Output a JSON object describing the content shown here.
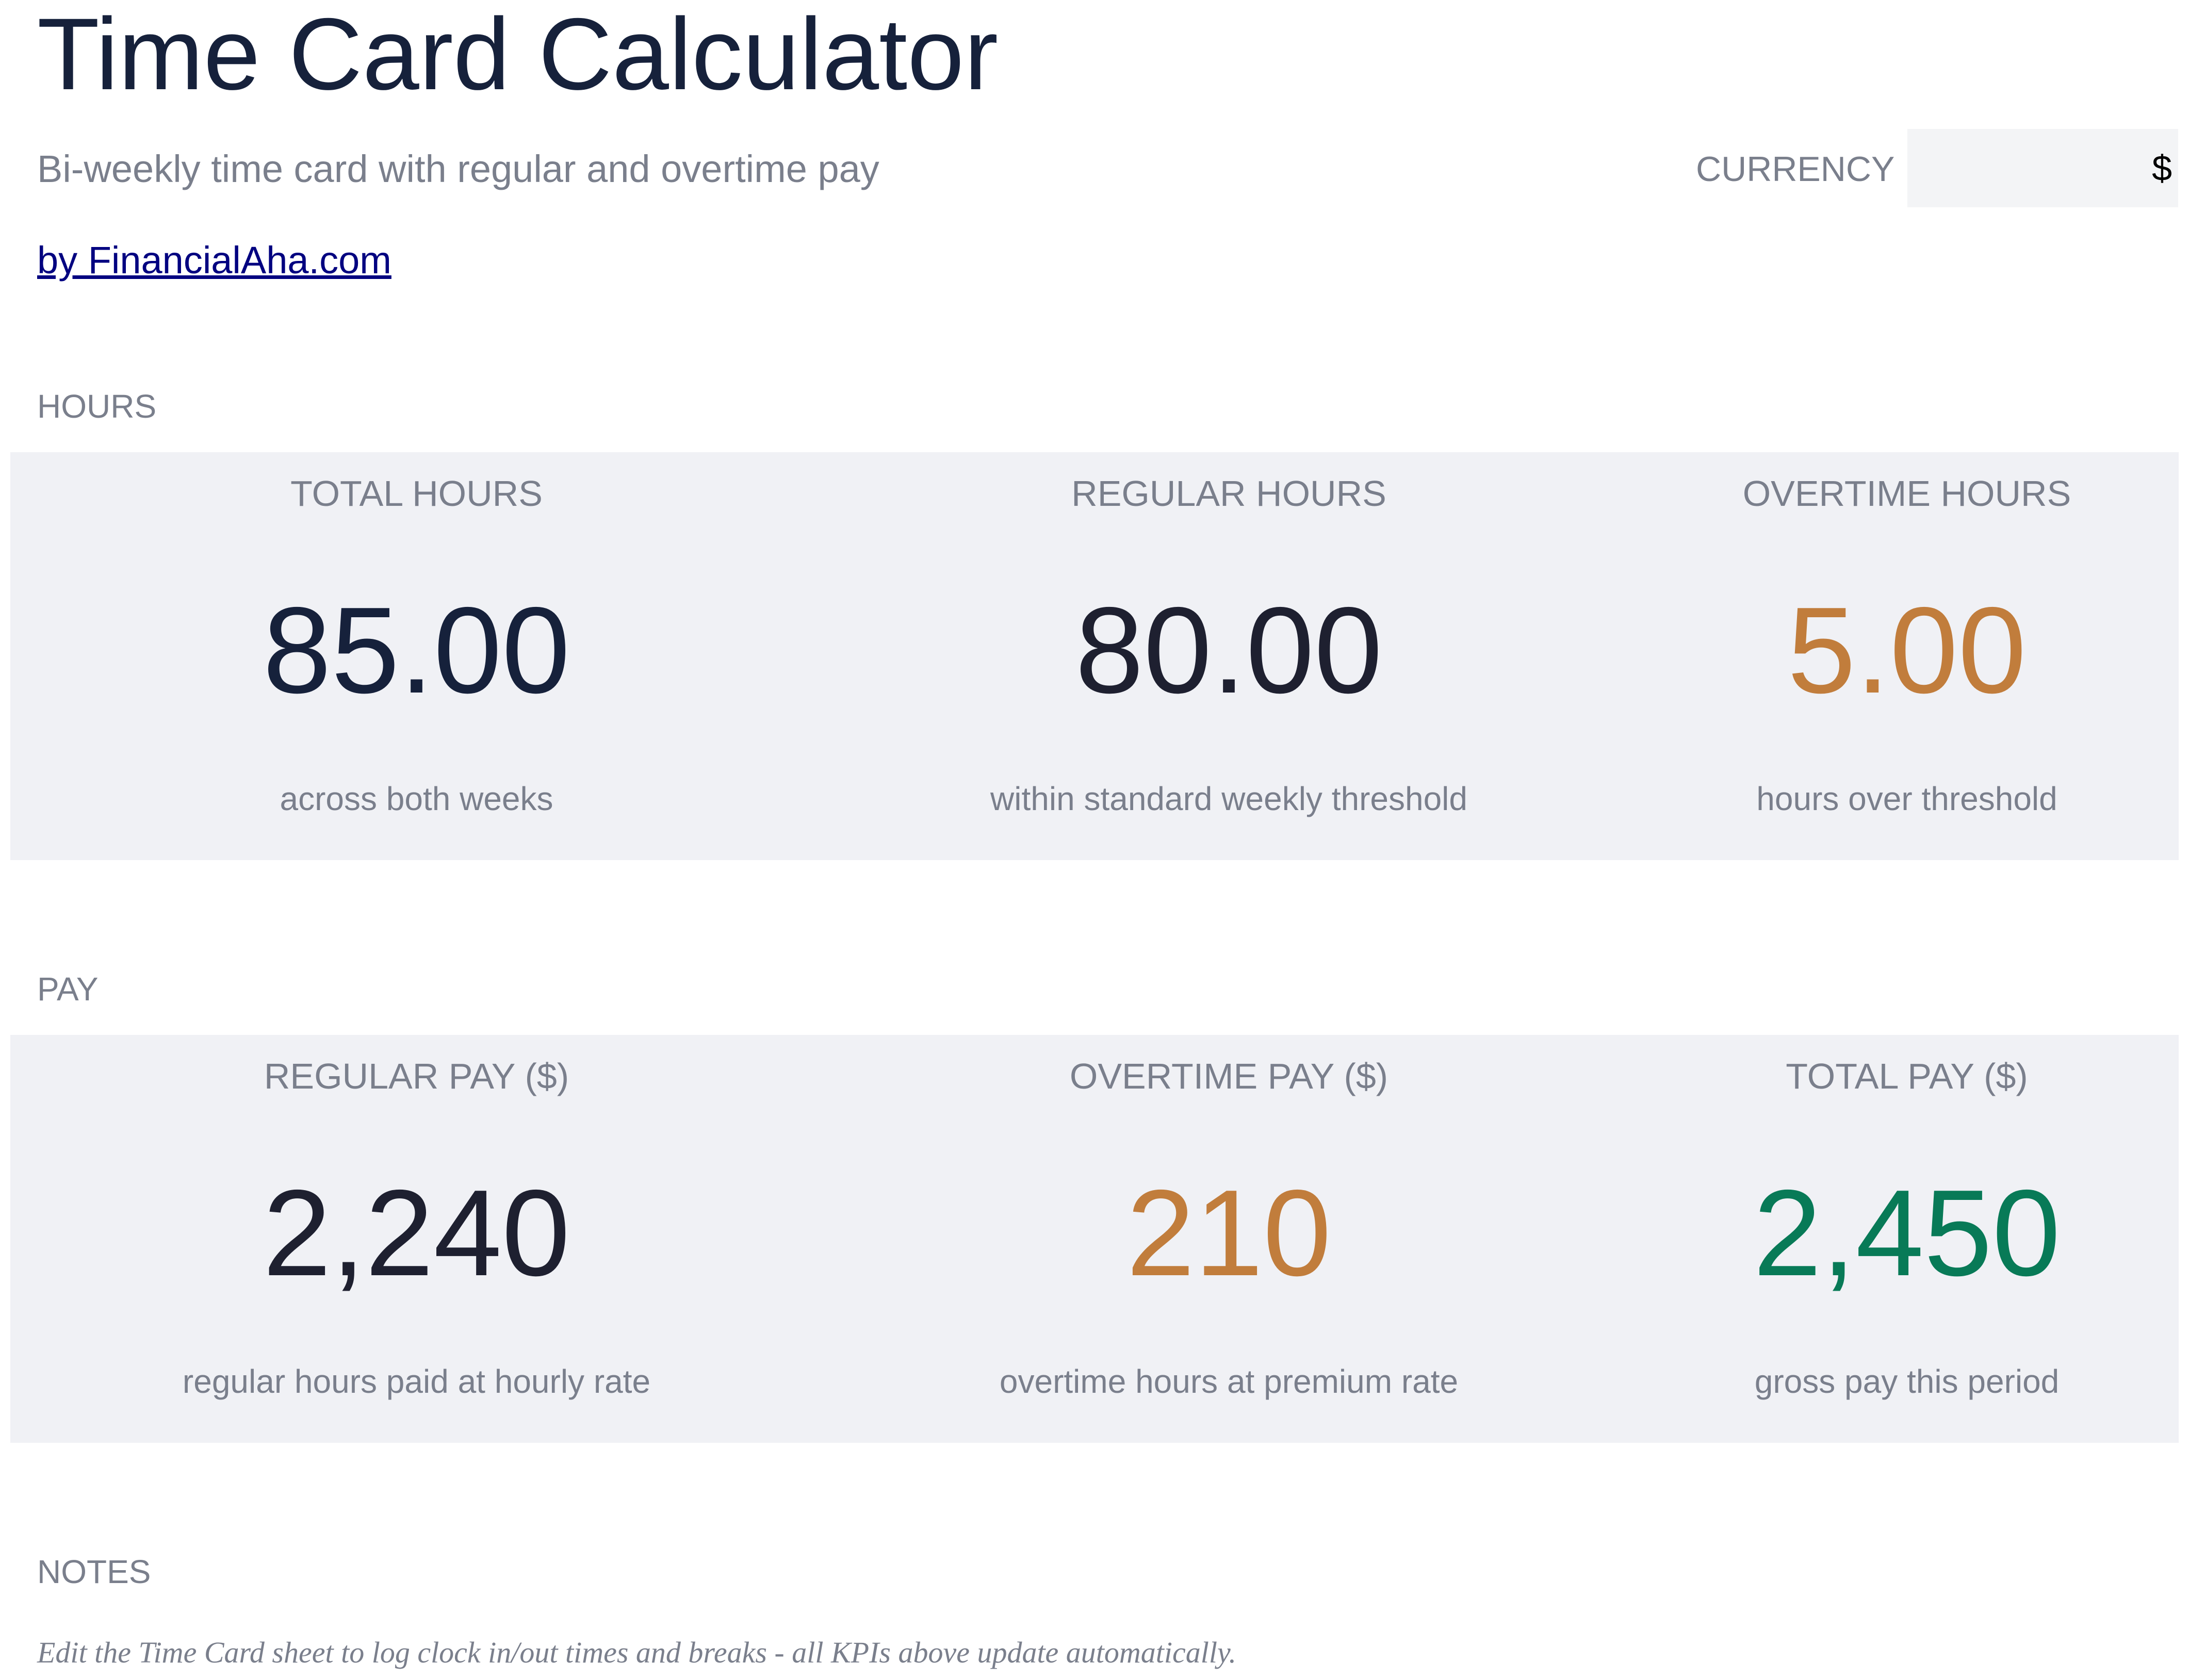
{
  "header": {
    "title": "Time Card Calculator",
    "subtitle": "Bi-weekly time card with regular and overtime pay",
    "byline": "by FinancialAha.com"
  },
  "currency": {
    "label": "CURRENCY",
    "value": "$"
  },
  "colors": {
    "navy": "#16213b",
    "dark": "#1e2030",
    "amber": "#c17d3c",
    "green": "#087a57",
    "muted": "#7a7f8c",
    "panel": "#f0f1f5"
  },
  "hours": {
    "section_label": "HOURS",
    "kpis": [
      {
        "label": "TOTAL HOURS",
        "value": "85.00",
        "sub": "across both weeks"
      },
      {
        "label": "REGULAR HOURS",
        "value": "80.00",
        "sub": "within standard weekly threshold"
      },
      {
        "label": "OVERTIME HOURS",
        "value": "5.00",
        "sub": "hours over threshold"
      }
    ]
  },
  "pay": {
    "section_label": "PAY",
    "kpis": [
      {
        "label": "REGULAR PAY ($)",
        "value": "2,240",
        "sub": "regular hours paid at hourly rate"
      },
      {
        "label": "OVERTIME PAY ($)",
        "value": "210",
        "sub": "overtime hours at premium rate"
      },
      {
        "label": "TOTAL PAY ($)",
        "value": "2,450",
        "sub": "gross pay this period"
      }
    ]
  },
  "notes": {
    "section_label": "NOTES",
    "text": "Edit the Time Card sheet to log clock in/out times and breaks - all KPIs above update automatically."
  }
}
